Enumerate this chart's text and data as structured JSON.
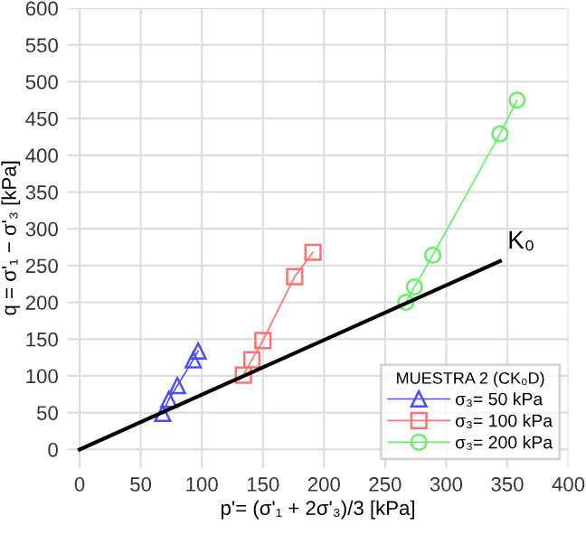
{
  "chart_data": {
    "type": "line",
    "xlabel": "p'= (σ'₁ + 2σ'₃)/3 [kPa]",
    "ylabel": "q = σ'₁ − σ'₃ [kPa]",
    "legend_title": "MUESTRA 2 (CK₀D)",
    "xlim": [
      -10,
      400
    ],
    "ylim": [
      -25,
      600
    ],
    "xticks": [
      0,
      50,
      100,
      150,
      200,
      250,
      300,
      350,
      400
    ],
    "yticks": [
      0,
      50,
      100,
      150,
      200,
      250,
      300,
      350,
      400,
      450,
      500,
      550,
      600
    ],
    "grid": true,
    "legend": "bottom right",
    "line_style": "solid",
    "series": [
      {
        "name": "σ₃= 50 kPa",
        "color": "#4d4dff",
        "marker": "triangle",
        "x": [
          68,
          73,
          80,
          93,
          97
        ],
        "values": [
          49,
          68,
          87,
          122,
          134
        ]
      },
      {
        "name": "σ₃= 100 kPa",
        "color": "#ff7070",
        "marker": "square",
        "x": [
          134,
          141,
          150,
          176,
          191
        ],
        "values": [
          101,
          122,
          148,
          235,
          268
        ]
      },
      {
        "name": "σ₃= 200 kPa",
        "color": "#66ee66",
        "marker": "circle",
        "x": [
          267,
          274,
          289,
          344,
          358
        ],
        "values": [
          200,
          221,
          264,
          429,
          475
        ]
      },
      {
        "type": "line",
        "color": "#000000",
        "marker": "none",
        "x": [
          0,
          344
        ],
        "values": [
          0,
          256
        ]
      }
    ],
    "annotations": [
      "K₀"
    ]
  }
}
